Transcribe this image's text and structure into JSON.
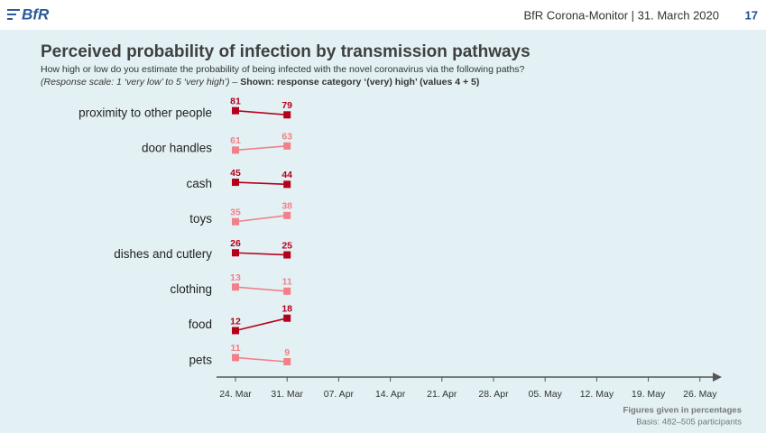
{
  "header": {
    "logo": "BfR",
    "source": "BfR Corona-Monitor | 31. March 2020",
    "page": "17"
  },
  "chart_data": {
    "type": "slope",
    "title": "Perceived probability of infection by transmission pathways",
    "subtitle": "How high or low do you estimate the probability of being infected with the novel coronavirus via the following paths?",
    "scale_note": "(Response scale: 1 ‘very low’ to 5 ‘very high’) – ",
    "shown_note": "Shown: response category ‘(very) high’ (values 4 + 5)",
    "categories": [
      "24. Mar",
      "31. Mar",
      "07. Apr",
      "14. Apr",
      "21. Apr",
      "28. Apr",
      "05. May",
      "12. May",
      "19. May",
      "26. May"
    ],
    "series": [
      {
        "name": "proximity to other people",
        "color": "#b5001a",
        "values": [
          81,
          79,
          null,
          null,
          null,
          null,
          null,
          null,
          null,
          null
        ]
      },
      {
        "name": "door handles",
        "color": "#f28088",
        "values": [
          61,
          63,
          null,
          null,
          null,
          null,
          null,
          null,
          null,
          null
        ]
      },
      {
        "name": "cash",
        "color": "#b5001a",
        "values": [
          45,
          44,
          null,
          null,
          null,
          null,
          null,
          null,
          null,
          null
        ]
      },
      {
        "name": "toys",
        "color": "#f28088",
        "values": [
          35,
          38,
          null,
          null,
          null,
          null,
          null,
          null,
          null,
          null
        ]
      },
      {
        "name": "dishes and cutlery",
        "color": "#b5001a",
        "values": [
          26,
          25,
          null,
          null,
          null,
          null,
          null,
          null,
          null,
          null
        ]
      },
      {
        "name": "clothing",
        "color": "#f28088",
        "values": [
          13,
          11,
          null,
          null,
          null,
          null,
          null,
          null,
          null,
          null
        ]
      },
      {
        "name": "food",
        "color": "#b5001a",
        "values": [
          12,
          18,
          null,
          null,
          null,
          null,
          null,
          null,
          null,
          null
        ]
      },
      {
        "name": "pets",
        "color": "#f28088",
        "values": [
          11,
          9,
          null,
          null,
          null,
          null,
          null,
          null,
          null,
          null
        ]
      }
    ]
  },
  "footer": {
    "note": "Figures given in percentages",
    "basis": "Basis: 482–505 participants"
  }
}
